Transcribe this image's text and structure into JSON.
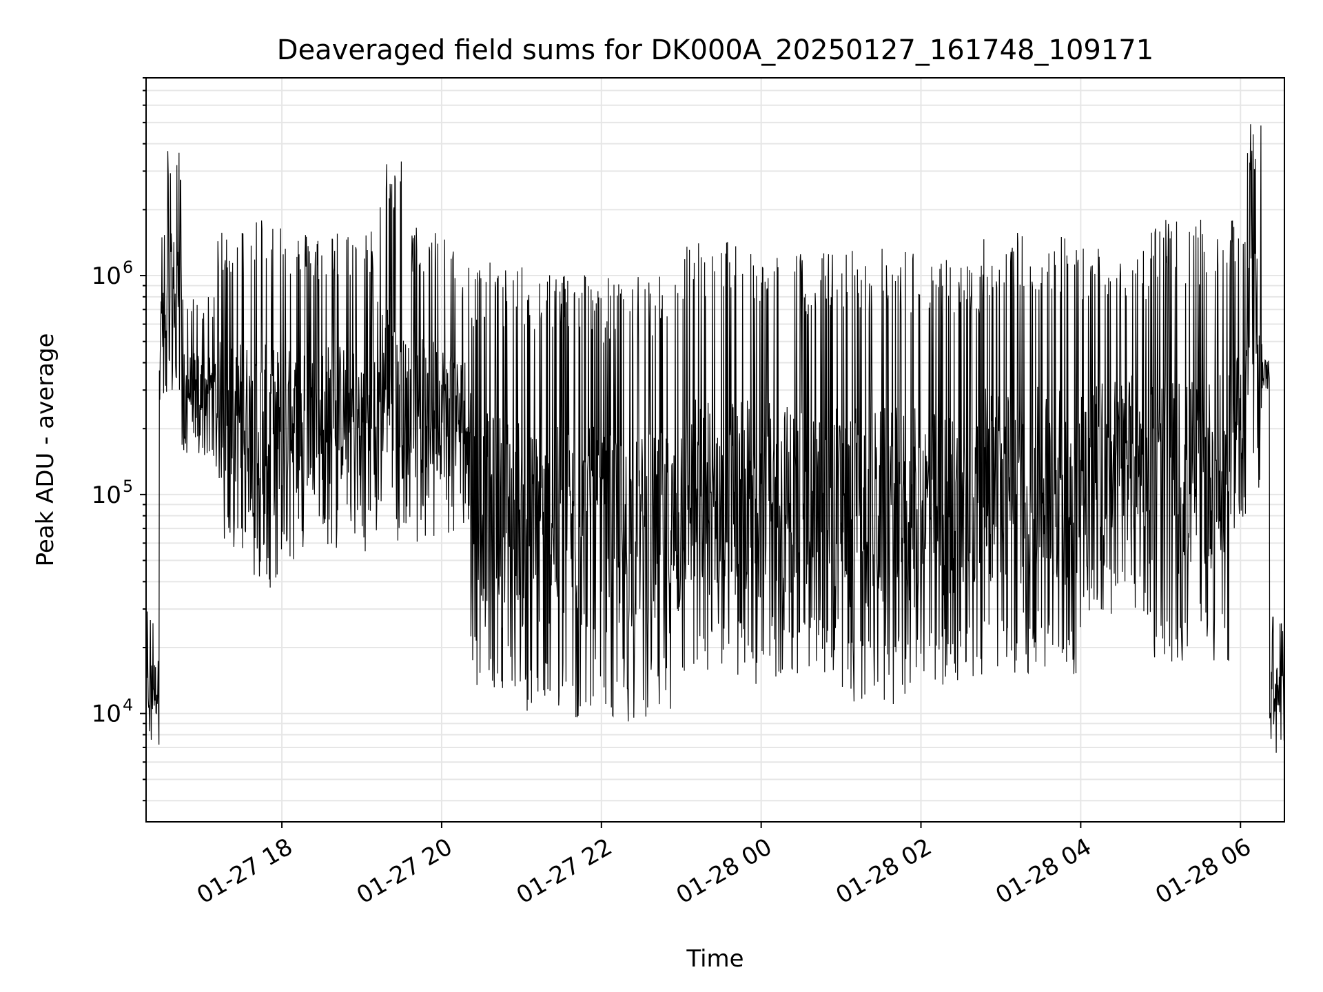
{
  "chart_data": {
    "type": "line",
    "title": "Deaveraged field sums for DK000A_20250127_161748_109171",
    "xlabel": "Time",
    "ylabel": "Peak ADU - average",
    "yscale": "log",
    "ylim": [
      3200,
      8000000
    ],
    "xlim": [
      "2025-01-27 16:18",
      "2025-01-28 06:33"
    ],
    "grid": true,
    "line_color": "#000000",
    "grid_color": "#e6e6e6",
    "x_ticks": [
      {
        "time": "2025-01-27 18:00",
        "label": "01-27 18"
      },
      {
        "time": "2025-01-27 20:00",
        "label": "01-27 20"
      },
      {
        "time": "2025-01-27 22:00",
        "label": "01-27 22"
      },
      {
        "time": "2025-01-28 00:00",
        "label": "01-28 00"
      },
      {
        "time": "2025-01-28 02:00",
        "label": "01-28 02"
      },
      {
        "time": "2025-01-28 04:00",
        "label": "01-28 04"
      },
      {
        "time": "2025-01-28 06:00",
        "label": "01-28 06"
      }
    ],
    "y_ticks": [
      {
        "value": 10000,
        "base": "10",
        "exp": "4"
      },
      {
        "value": 100000,
        "base": "10",
        "exp": "5"
      },
      {
        "value": 1000000,
        "base": "10",
        "exp": "6"
      }
    ],
    "series": [
      {
        "segments": [
          {
            "start": "2025-01-27 16:18",
            "end": "2025-01-27 16:28",
            "low": 7000,
            "high": 30000
          },
          {
            "start": "2025-01-27 16:28",
            "end": "2025-01-27 16:34",
            "low": 250000,
            "high": 1700000
          },
          {
            "start": "2025-01-27 16:34",
            "end": "2025-01-27 16:45",
            "low": 300000,
            "high": 3800000
          },
          {
            "start": "2025-01-27 16:45",
            "end": "2025-01-27 17:10",
            "low": 150000,
            "high": 800000
          },
          {
            "start": "2025-01-27 17:10",
            "end": "2025-01-27 17:35",
            "low": 55000,
            "high": 1700000
          },
          {
            "start": "2025-01-27 17:35",
            "end": "2025-01-27 18:00",
            "low": 35000,
            "high": 2000000
          },
          {
            "start": "2025-01-27 18:00",
            "end": "2025-01-27 18:30",
            "low": 50000,
            "high": 1600000
          },
          {
            "start": "2025-01-27 18:30",
            "end": "2025-01-27 19:10",
            "low": 55000,
            "high": 1650000
          },
          {
            "start": "2025-01-27 19:10",
            "end": "2025-01-27 19:30",
            "low": 60000,
            "high": 3500000
          },
          {
            "start": "2025-01-27 19:30",
            "end": "2025-01-27 20:10",
            "low": 60000,
            "high": 1700000
          },
          {
            "start": "2025-01-27 20:10",
            "end": "2025-01-27 20:22",
            "low": 70000,
            "high": 1200000
          },
          {
            "start": "2025-01-27 20:22",
            "end": "2025-01-27 21:00",
            "low": 13000,
            "high": 1150000
          },
          {
            "start": "2025-01-27 21:00",
            "end": "2025-01-27 22:00",
            "low": 9000,
            "high": 1100000
          },
          {
            "start": "2025-01-27 22:00",
            "end": "2025-01-27 23:00",
            "low": 9000,
            "high": 1000000
          },
          {
            "start": "2025-01-27 23:00",
            "end": "2025-01-28 00:00",
            "low": 13000,
            "high": 1500000
          },
          {
            "start": "2025-01-28 00:00",
            "end": "2025-01-28 01:00",
            "low": 14000,
            "high": 1300000
          },
          {
            "start": "2025-01-28 01:00",
            "end": "2025-01-28 02:00",
            "low": 11000,
            "high": 1350000
          },
          {
            "start": "2025-01-28 02:00",
            "end": "2025-01-28 02:45",
            "low": 13000,
            "high": 1200000
          },
          {
            "start": "2025-01-28 02:45",
            "end": "2025-01-28 04:00",
            "low": 15000,
            "high": 1600000
          },
          {
            "start": "2025-01-28 04:00",
            "end": "2025-01-28 04:50",
            "low": 28000,
            "high": 1400000
          },
          {
            "start": "2025-01-28 04:50",
            "end": "2025-01-28 05:55",
            "low": 17000,
            "high": 1800000
          },
          {
            "start": "2025-01-28 05:55",
            "end": "2025-01-28 06:05",
            "low": 70000,
            "high": 1800000
          },
          {
            "start": "2025-01-28 06:05",
            "end": "2025-01-28 06:16",
            "low": 100000,
            "high": 5000000
          },
          {
            "start": "2025-01-28 06:16",
            "end": "2025-01-28 06:22",
            "low": 300000,
            "high": 500000
          },
          {
            "start": "2025-01-28 06:22",
            "end": "2025-01-28 06:33",
            "low": 6500,
            "high": 28000
          }
        ]
      }
    ]
  }
}
